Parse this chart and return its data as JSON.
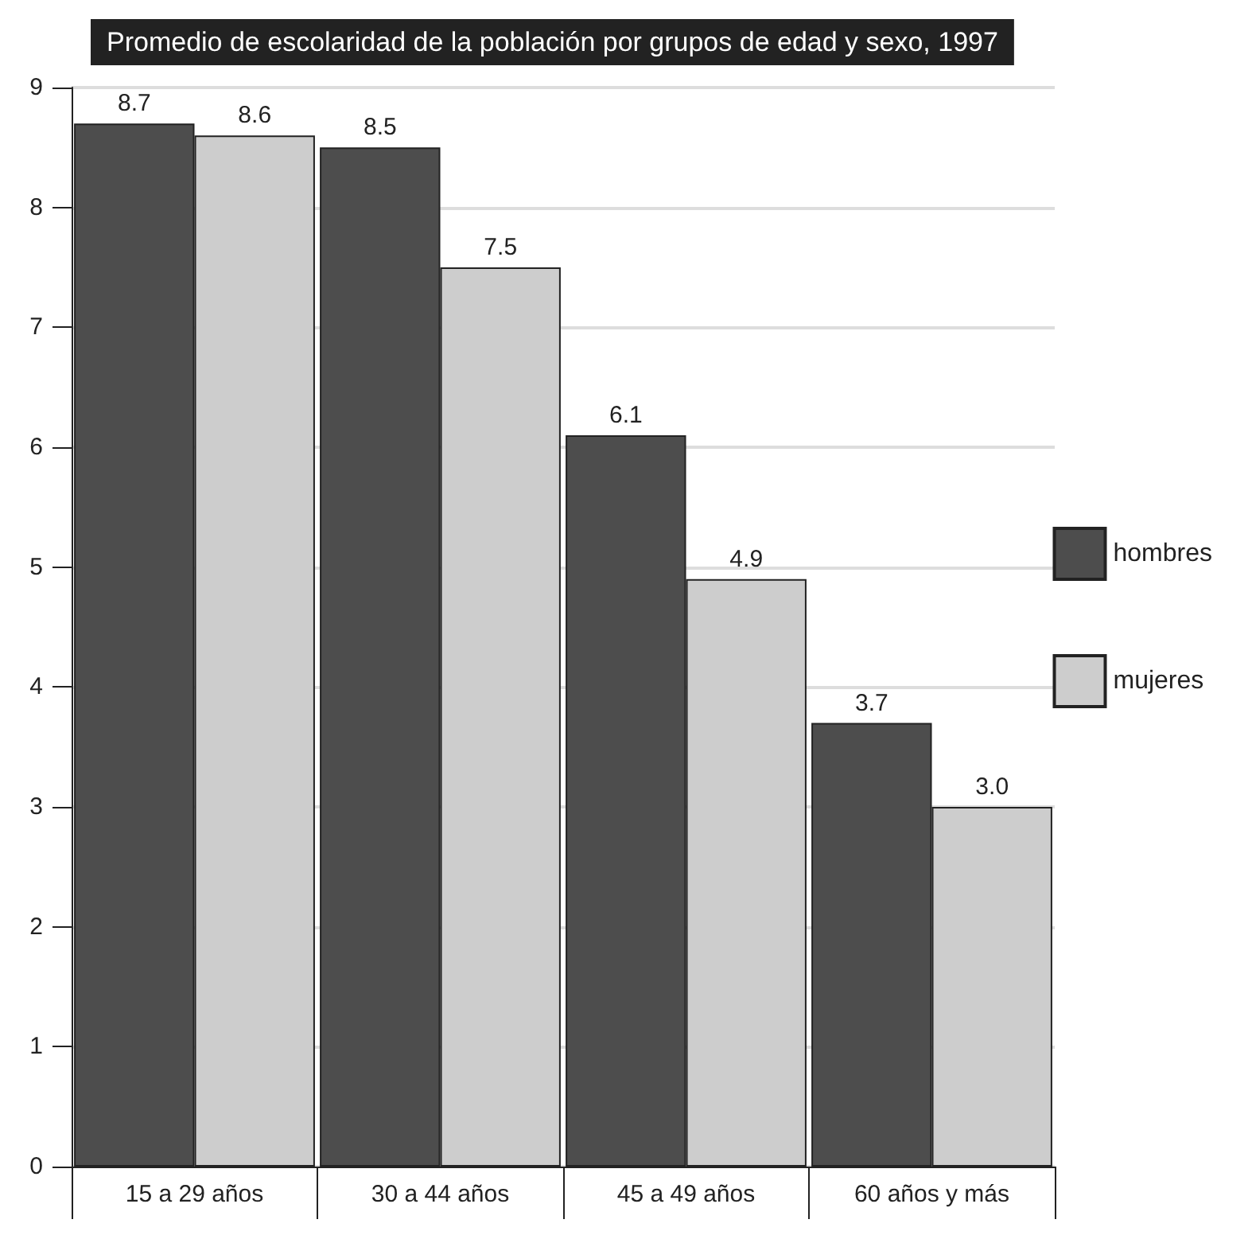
{
  "chart_data": {
    "type": "bar",
    "title": "Promedio de escolaridad de la población por grupos de edad y sexo, 1997",
    "categories": [
      "15 a 29 años",
      "30 a 44 años",
      "45 a 49 años",
      "60 años y más"
    ],
    "series": [
      {
        "name": "hombres",
        "color": "#4d4d4d",
        "values": [
          8.7,
          8.5,
          6.1,
          3.7
        ],
        "value_labels": [
          "8.7",
          "8.5",
          "6.1",
          "3.7"
        ]
      },
      {
        "name": "mujeres",
        "color": "#cdcdcd",
        "values": [
          8.6,
          7.5,
          4.9,
          3.0
        ],
        "value_labels": [
          "8.6",
          "7.5",
          "4.9",
          "3.0"
        ]
      }
    ],
    "ylim": [
      0,
      9
    ],
    "yticks": [
      0,
      1,
      2,
      3,
      4,
      5,
      6,
      7,
      8,
      9
    ],
    "grid": "y",
    "legend": "right"
  }
}
